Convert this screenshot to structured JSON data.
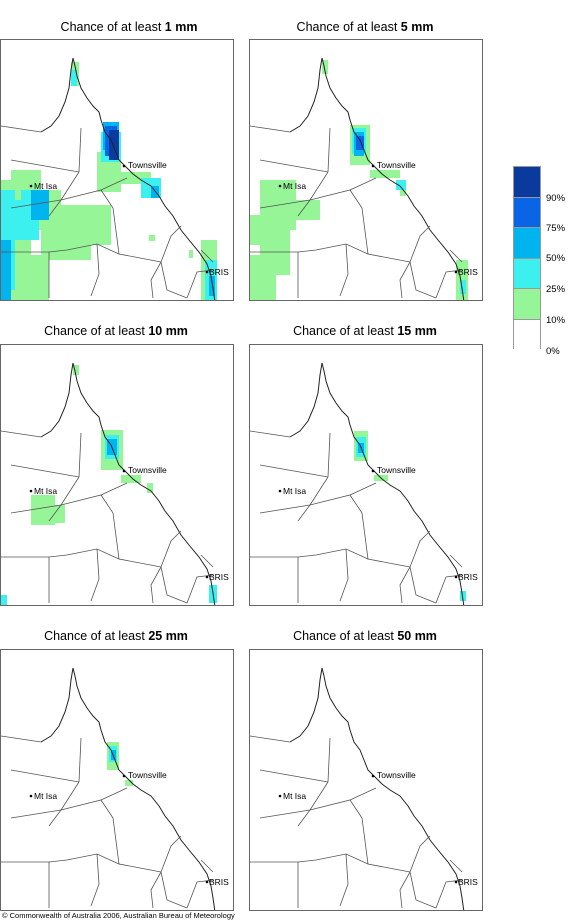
{
  "panels": [
    {
      "title_prefix": "Chance of at least ",
      "amount": "1 mm"
    },
    {
      "title_prefix": "Chance of at least ",
      "amount": "5 mm"
    },
    {
      "title_prefix": "Chance of at least ",
      "amount": "10 mm"
    },
    {
      "title_prefix": "Chance of at least ",
      "amount": "15 mm"
    },
    {
      "title_prefix": "Chance of at least ",
      "amount": "25 mm"
    },
    {
      "title_prefix": "Chance of at least ",
      "amount": "50 mm"
    }
  ],
  "places": {
    "townsville": "Townsville",
    "mt_isa": "Mt Isa",
    "bris": "BRIS"
  },
  "legend": {
    "labels": [
      "90%",
      "75%",
      "50%",
      "25%",
      "10%",
      "0%"
    ],
    "colors": [
      "#0a3a9e",
      "#0a64e6",
      "#00b4f0",
      "#3cf0f0",
      "#96f596",
      "#ffffff"
    ]
  },
  "copyright": "© Commonwealth of Australia 2006, Australian Bureau of Meteorology"
}
